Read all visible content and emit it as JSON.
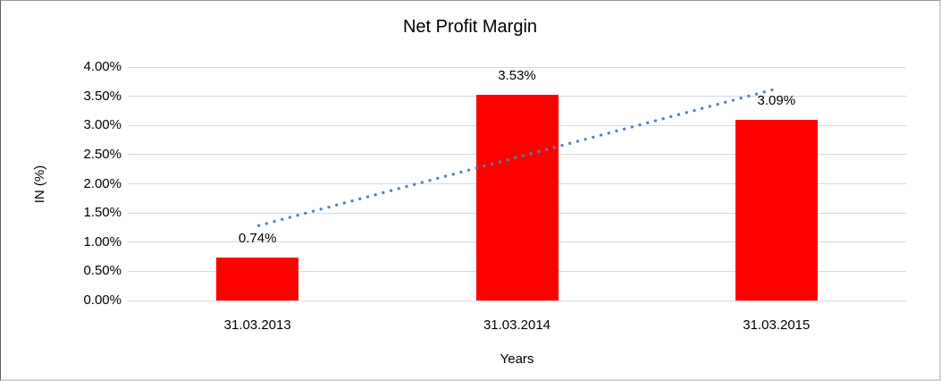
{
  "chart_data": {
    "type": "bar",
    "title": "Net Profit Margin",
    "xlabel": "Years",
    "ylabel": "IN (%)",
    "categories": [
      "31.03.2013",
      "31.03.2014",
      "31.03.2015"
    ],
    "values": [
      0.74,
      3.53,
      3.09
    ],
    "data_labels": [
      "0.74%",
      "3.53%",
      "3.09%"
    ],
    "ylim": [
      0,
      4
    ],
    "ytick_step": 0.5,
    "ytick_labels": [
      "0.00%",
      "0.50%",
      "1.00%",
      "1.50%",
      "2.00%",
      "2.50%",
      "3.00%",
      "3.50%",
      "4.00%"
    ],
    "grid": true,
    "legend": "none",
    "bar_color": "#FF0000",
    "gridline_color": "#D9D9D9",
    "text_color": "#000000",
    "trendline": {
      "type": "linear",
      "style": "dotted",
      "color": "#4F81BD"
    }
  }
}
